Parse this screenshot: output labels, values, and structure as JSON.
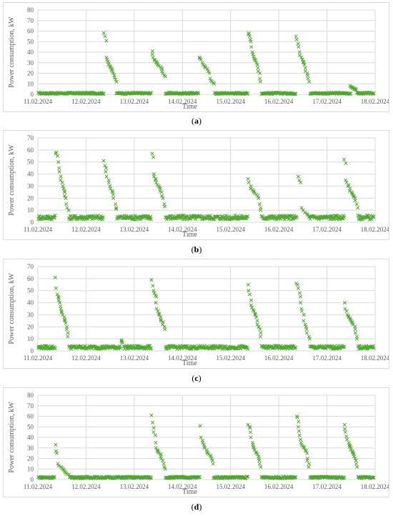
{
  "colors": {
    "marker": "#4ea72e",
    "grid": "#d9d9d9",
    "axis_text": "#595959"
  },
  "chart_data": [
    {
      "type": "scatter",
      "caption": "(a)",
      "caption_letter": "a",
      "xlabel": "Time",
      "ylabel": "Power consumption, kW",
      "ylim": [
        0,
        80
      ],
      "yticks": [
        0,
        10,
        20,
        30,
        40,
        50,
        60,
        70,
        80
      ],
      "xticks": [
        "11.02.2024",
        "12.02.2024",
        "13.02.2024",
        "14.02.2024",
        "15.02.2024",
        "16.02.2024",
        "17.02.2024",
        "18.02.2024"
      ],
      "grid": true,
      "base_level": 1,
      "peaks": [
        {
          "day": 1.5,
          "width": 0.25,
          "values": [
            58,
            55,
            51,
            35,
            33,
            31,
            30,
            28,
            27,
            26,
            25,
            24,
            23,
            22,
            20,
            18,
            16,
            14,
            12
          ]
        },
        {
          "day": 2.5,
          "width": 0.28,
          "values": [
            41,
            38,
            35,
            33,
            32,
            31,
            30,
            29,
            28,
            27,
            26,
            25,
            24,
            22,
            20,
            18,
            17
          ]
        },
        {
          "day": 3.5,
          "width": 0.32,
          "values": [
            35,
            34,
            33,
            30,
            28,
            27,
            26,
            25,
            24,
            22,
            20,
            15,
            13,
            12,
            11,
            10
          ]
        },
        {
          "day": 4.5,
          "width": 0.28,
          "values": [
            58,
            57,
            55,
            52,
            50,
            45,
            40,
            38,
            36,
            34,
            33,
            32,
            30,
            28,
            25,
            22,
            20,
            15,
            12
          ]
        },
        {
          "day": 5.5,
          "width": 0.28,
          "values": [
            55,
            52,
            48,
            45,
            40,
            37,
            35,
            33,
            31,
            30,
            28,
            25,
            22,
            20,
            18,
            15,
            12
          ]
        },
        {
          "day": 6.55,
          "width": 0.12,
          "values": [
            8,
            7,
            7,
            6,
            6,
            6,
            5,
            5,
            5,
            5,
            4
          ]
        }
      ]
    },
    {
      "type": "scatter",
      "caption": "(b)",
      "caption_letter": "b",
      "xlabel": "Time",
      "ylabel": "Power consumption, kW",
      "ylim": [
        0,
        70
      ],
      "yticks": [
        0,
        10,
        20,
        30,
        40,
        50,
        60,
        70
      ],
      "xticks": [
        "11.02.2024",
        "12.02.2024",
        "13.02.2024",
        "14.02.2024",
        "15.02.2024",
        "16.02.2024",
        "17.02.2024",
        "18.02.2024"
      ],
      "grid": true,
      "base_level": 4,
      "peaks": [
        {
          "day": 0.5,
          "width": 0.28,
          "values": [
            58,
            57,
            55,
            50,
            45,
            42,
            38,
            35,
            33,
            30,
            28,
            26,
            25,
            22,
            20,
            15,
            12,
            10
          ]
        },
        {
          "day": 1.5,
          "width": 0.28,
          "values": [
            51,
            47,
            45,
            42,
            38,
            35,
            33,
            30,
            28,
            26,
            25,
            23,
            20,
            15,
            12,
            11
          ]
        },
        {
          "day": 2.5,
          "width": 0.28,
          "values": [
            57,
            54,
            40,
            38,
            36,
            35,
            33,
            31,
            30,
            29,
            28,
            26,
            25,
            22,
            20,
            15,
            13
          ]
        },
        {
          "day": 4.5,
          "width": 0.28,
          "values": [
            36,
            33,
            30,
            28,
            27,
            26,
            25,
            24,
            23,
            22,
            20,
            15,
            12,
            10
          ]
        },
        {
          "day": 5.5,
          "width": 0.25,
          "values": [
            38,
            35,
            33,
            12,
            10,
            8,
            7,
            6
          ]
        },
        {
          "day": 6.5,
          "width": 0.28,
          "values": [
            52,
            49,
            35,
            33,
            31,
            30,
            28,
            26,
            25,
            24,
            23,
            22,
            21,
            20,
            18,
            15,
            12
          ]
        }
      ]
    },
    {
      "type": "scatter",
      "caption": "(c)",
      "caption_letter": "c",
      "xlabel": "Time",
      "ylabel": "Power consumption, kW",
      "ylim": [
        0,
        70
      ],
      "yticks": [
        0,
        10,
        20,
        30,
        40,
        50,
        60,
        70
      ],
      "xticks": [
        "11.02.2024",
        "12.02.2024",
        "13.02.2024",
        "14.02.2024",
        "15.02.2024",
        "16.02.2024",
        "17.02.2024",
        "18.02.2024"
      ],
      "grid": true,
      "base_level": 3,
      "peaks": [
        {
          "day": 0.5,
          "width": 0.28,
          "values": [
            61,
            52,
            47,
            45,
            44,
            42,
            40,
            37,
            35,
            33,
            32,
            30,
            28,
            26,
            25,
            23,
            20,
            18,
            15,
            12
          ]
        },
        {
          "day": 2.5,
          "width": 0.28,
          "values": [
            59,
            54,
            50,
            48,
            46,
            45,
            40,
            35,
            33,
            31,
            30,
            28,
            26,
            25,
            24,
            22,
            20,
            18
          ]
        },
        {
          "day": 4.5,
          "width": 0.28,
          "values": [
            55,
            50,
            47,
            42,
            38,
            36,
            34,
            33,
            31,
            30,
            28,
            25,
            22,
            20,
            18,
            15,
            12
          ]
        },
        {
          "day": 5.5,
          "width": 0.28,
          "values": [
            56,
            55,
            52,
            48,
            45,
            40,
            35,
            33,
            30,
            25,
            22,
            20,
            18,
            15,
            12,
            10
          ]
        },
        {
          "day": 6.5,
          "width": 0.28,
          "values": [
            40,
            35,
            33,
            30,
            29,
            28,
            27,
            26,
            25,
            24,
            23,
            22,
            20,
            18,
            15,
            12,
            10
          ]
        },
        {
          "day": 1.75,
          "width": 0.05,
          "values": [
            9,
            8,
            7,
            7
          ]
        }
      ]
    },
    {
      "type": "scatter",
      "caption": "(d)",
      "caption_letter": "d",
      "xlabel": "Time",
      "ylabel": "Power consumption, kW",
      "ylim": [
        0,
        80
      ],
      "yticks": [
        0,
        10,
        20,
        30,
        40,
        50,
        60,
        70,
        80
      ],
      "xticks": [
        "11.02.2024",
        "12.02.2024",
        "13.02.2024",
        "14.02.2024",
        "15.02.2024",
        "16.02.2024",
        "17.02.2024",
        "18.02.2024"
      ],
      "grid": true,
      "base_level": 2,
      "peaks": [
        {
          "day": 0.5,
          "width": 0.3,
          "values": [
            33,
            27,
            25,
            15,
            13,
            12,
            11,
            10,
            9,
            8,
            7,
            6,
            5,
            5
          ]
        },
        {
          "day": 2.5,
          "width": 0.28,
          "values": [
            61,
            54,
            49,
            45,
            42,
            35,
            30,
            28,
            27,
            26,
            25,
            24,
            22,
            20,
            18,
            15,
            12,
            10
          ]
        },
        {
          "day": 3.5,
          "width": 0.28,
          "values": [
            51,
            40,
            37,
            35,
            33,
            31,
            30,
            28,
            26,
            25,
            24,
            23,
            22,
            20,
            18,
            15
          ]
        },
        {
          "day": 4.5,
          "width": 0.28,
          "values": [
            52,
            50,
            49,
            45,
            40,
            35,
            33,
            31,
            30,
            28,
            26,
            25,
            24,
            22,
            20,
            18,
            15,
            12
          ]
        },
        {
          "day": 5.5,
          "width": 0.28,
          "values": [
            60,
            59,
            55,
            50,
            46,
            42,
            38,
            35,
            33,
            32,
            31,
            30,
            28,
            27,
            25,
            20,
            18,
            15,
            12
          ]
        },
        {
          "day": 6.5,
          "width": 0.28,
          "values": [
            52,
            48,
            45,
            41,
            38,
            35,
            33,
            32,
            31,
            30,
            28,
            27,
            26,
            25,
            24,
            22,
            20,
            18,
            15,
            12
          ]
        }
      ]
    }
  ]
}
